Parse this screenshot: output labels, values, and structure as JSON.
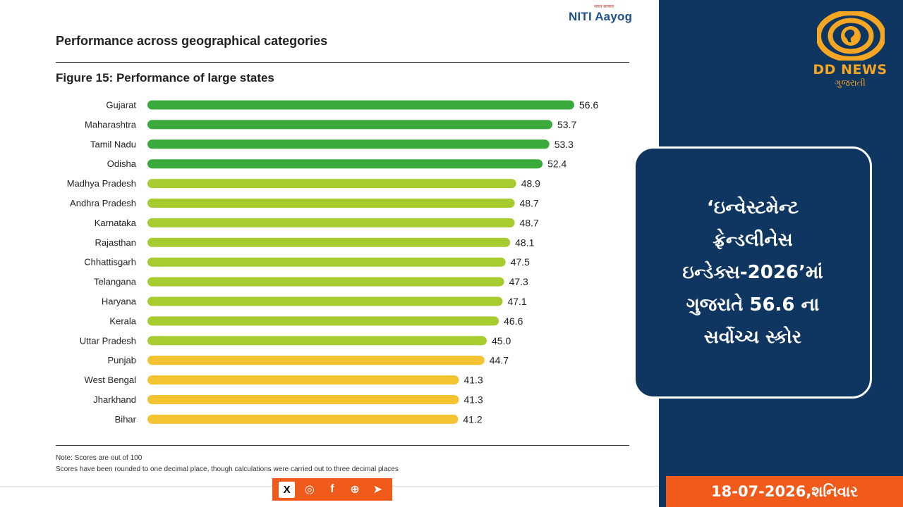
{
  "brand": {
    "niti_tagline": "भारत सरकार",
    "niti_name": "NITI Aayog"
  },
  "section_title": "Performance across geographical categories",
  "chart_data": {
    "type": "bar",
    "orientation": "horizontal",
    "title": "Figure 15: Performance of large states",
    "categories": [
      "Gujarat",
      "Maharashtra",
      "Tamil Nadu",
      "Odisha",
      "Madhya Pradesh",
      "Andhra Pradesh",
      "Karnataka",
      "Rajasthan",
      "Chhattisgarh",
      "Telangana",
      "Haryana",
      "Kerala",
      "Uttar Pradesh",
      "Punjab",
      "West Bengal",
      "Jharkhand",
      "Bihar"
    ],
    "values": [
      56.6,
      53.7,
      53.3,
      52.4,
      48.9,
      48.7,
      48.7,
      48.1,
      47.5,
      47.3,
      47.1,
      46.6,
      45.0,
      44.7,
      41.3,
      41.3,
      41.2
    ],
    "value_labels": [
      "56.6",
      "53.7",
      "53.3",
      "52.4",
      "48.9",
      "48.7",
      "48.7",
      "48.1",
      "47.5",
      "47.3",
      "47.1",
      "46.6",
      "45.0",
      "44.7",
      "41.3",
      "41.3",
      "41.2"
    ],
    "xlim": [
      0,
      56.6
    ],
    "grid": false,
    "colors": {
      "high": "#3aaa3c",
      "mid": "#a6cc2f",
      "low": "#f3c332"
    },
    "color_groups": [
      "high",
      "high",
      "high",
      "high",
      "mid",
      "mid",
      "mid",
      "mid",
      "mid",
      "mid",
      "mid",
      "mid",
      "mid",
      "low",
      "low",
      "low",
      "low"
    ]
  },
  "notes": {
    "line1": "Note: Scores are out of 100",
    "line2": "Scores have been rounded to one decimal place, though calculations were carried out to three decimal places"
  },
  "social": {
    "x": "X",
    "instagram": "◎",
    "facebook": "f",
    "web": "⊕",
    "telegram": "➤"
  },
  "channel": {
    "name": "DD NEWS",
    "sub": "ગુજરાતી",
    "accent": "#f5a623",
    "panel_color": "#0f3561"
  },
  "headline": {
    "lines": [
      "‘ઇન્વેસ્ટમેન્ટ",
      "ફ્રેન્ડલીનેસ",
      "ઇન્ડેક્સ-2026’માં",
      "ગુજરાતે 56.6 ના",
      "સર્વોચ્ચ સ્કોર"
    ]
  },
  "date": "18-07-2026,શનિવાર"
}
